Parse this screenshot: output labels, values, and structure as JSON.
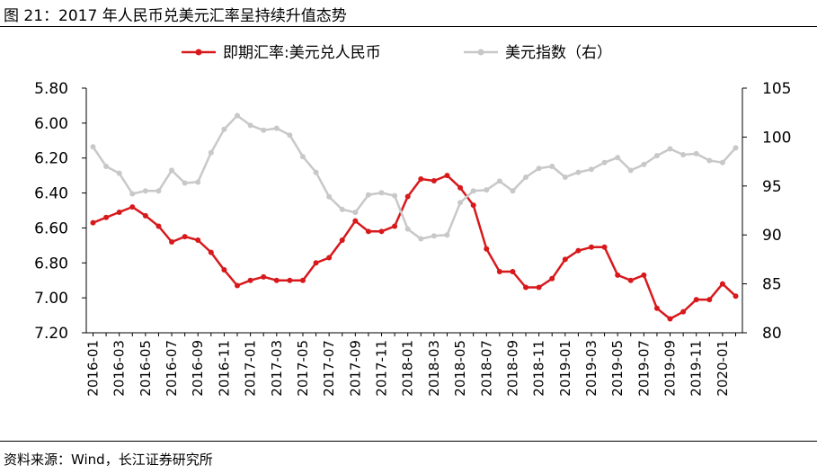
{
  "figure": {
    "caption": "图 21：2017 年人民币兑美元汇率呈持续升值态势",
    "source": "资料来源：Wind，长江证券研究所"
  },
  "chart_data": {
    "type": "line",
    "categories": [
      "2016-01",
      "2016-02",
      "2016-03",
      "2016-04",
      "2016-05",
      "2016-06",
      "2016-07",
      "2016-08",
      "2016-09",
      "2016-10",
      "2016-11",
      "2016-12",
      "2017-01",
      "2017-02",
      "2017-03",
      "2017-04",
      "2017-05",
      "2017-06",
      "2017-07",
      "2017-08",
      "2017-09",
      "2017-10",
      "2017-11",
      "2017-12",
      "2018-01",
      "2018-02",
      "2018-03",
      "2018-04",
      "2018-05",
      "2018-06",
      "2018-07",
      "2018-08",
      "2018-09",
      "2018-10",
      "2018-11",
      "2018-12",
      "2019-01",
      "2019-02",
      "2019-03",
      "2019-04",
      "2019-05",
      "2019-06",
      "2019-07",
      "2019-08",
      "2019-09",
      "2019-10",
      "2019-11",
      "2019-12",
      "2020-01",
      "2020-02"
    ],
    "x_tick_labels": [
      "2016-01",
      "2016-03",
      "2016-05",
      "2016-07",
      "2016-09",
      "2016-11",
      "2017-01",
      "2017-03",
      "2017-05",
      "2017-07",
      "2017-09",
      "2017-11",
      "2018-01",
      "2018-03",
      "2018-05",
      "2018-07",
      "2018-09",
      "2018-11",
      "2019-01",
      "2019-03",
      "2019-05",
      "2019-07",
      "2019-09",
      "2019-11",
      "2020-01"
    ],
    "series": [
      {
        "name": "即期汇率:美元兑人民币",
        "axis": "left",
        "color": "#d7191c",
        "values": [
          6.57,
          6.54,
          6.51,
          6.48,
          6.53,
          6.59,
          6.68,
          6.65,
          6.67,
          6.74,
          6.84,
          6.93,
          6.9,
          6.88,
          6.9,
          6.9,
          6.9,
          6.8,
          6.77,
          6.67,
          6.56,
          6.62,
          6.62,
          6.59,
          6.42,
          6.32,
          6.33,
          6.3,
          6.37,
          6.47,
          6.72,
          6.85,
          6.85,
          6.94,
          6.94,
          6.89,
          6.78,
          6.73,
          6.71,
          6.71,
          6.87,
          6.9,
          6.87,
          7.06,
          7.12,
          7.08,
          7.01,
          7.01,
          6.92,
          6.99
        ]
      },
      {
        "name": "美元指数（右）",
        "axis": "right",
        "color": "#c8c8c8",
        "values": [
          99.0,
          97.0,
          96.3,
          94.2,
          94.5,
          94.5,
          96.6,
          95.3,
          95.4,
          98.4,
          100.8,
          102.2,
          101.2,
          100.7,
          100.9,
          100.2,
          98.0,
          96.4,
          93.9,
          92.6,
          92.3,
          94.1,
          94.3,
          94.0,
          90.6,
          89.6,
          89.9,
          90.0,
          93.3,
          94.5,
          94.6,
          95.5,
          94.5,
          95.9,
          96.8,
          97.0,
          95.9,
          96.4,
          96.7,
          97.4,
          97.9,
          96.6,
          97.2,
          98.1,
          98.8,
          98.2,
          98.3,
          97.6,
          97.4,
          98.9
        ]
      }
    ],
    "y_left": {
      "min": 5.8,
      "max": 7.2,
      "reversed": true,
      "ticks": [
        "5.80",
        "6.00",
        "6.20",
        "6.40",
        "6.60",
        "6.80",
        "7.00",
        "7.20"
      ]
    },
    "y_right": {
      "min": 80,
      "max": 105,
      "ticks": [
        "105",
        "100",
        "95",
        "90",
        "85",
        "80"
      ]
    },
    "legend_position": "top-center",
    "grid": false
  }
}
